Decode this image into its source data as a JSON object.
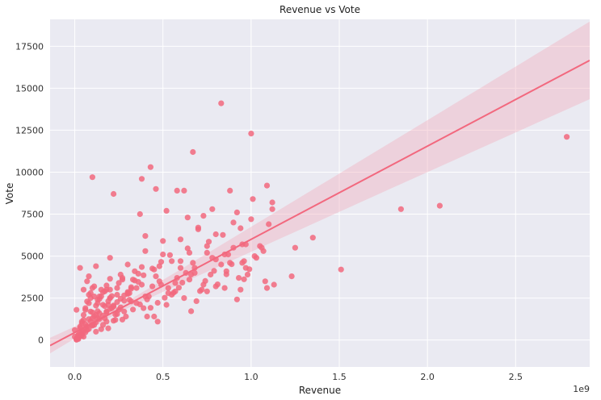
{
  "chart_data": {
    "type": "scatter",
    "title": "Revenue vs Vote",
    "xlabel": "Revenue",
    "ylabel": "Vote",
    "x_offset_label": "1e9",
    "xlim": [
      -0.14,
      2.92
    ],
    "ylim": [
      -1600,
      19100
    ],
    "xticks": [
      0.0,
      0.5,
      1.0,
      1.5,
      2.0,
      2.5
    ],
    "xtick_labels": [
      "0.0",
      "0.5",
      "1.0",
      "1.5",
      "2.0",
      "2.5"
    ],
    "yticks": [
      0,
      2500,
      5000,
      7500,
      10000,
      12500,
      15000,
      17500
    ],
    "ytick_labels": [
      "0",
      "2500",
      "5000",
      "7500",
      "10000",
      "12500",
      "15000",
      "17500"
    ],
    "grid": true,
    "background_color": "#eaeaf2",
    "point_color": "#f2687e",
    "line_color": "#f2687e",
    "band_color": "#f2b3c2",
    "regression": {
      "intercept": 450,
      "slope": 5550
    },
    "points_x": [
      0.02,
      0.03,
      0.05,
      0.04,
      0.06,
      0.08,
      0.1,
      0.12,
      0.15,
      0.18,
      0.2,
      0.22,
      0.25,
      0.28,
      0.3,
      0.02,
      0.04,
      0.07,
      0.09,
      0.11,
      0.13,
      0.16,
      0.19,
      0.21,
      0.24,
      0.27,
      0.29,
      0.32,
      0.35,
      0.01,
      0.03,
      0.06,
      0.08,
      0.12,
      0.14,
      0.17,
      0.23,
      0.26,
      0.31,
      0.34,
      0.38,
      0.4,
      0.42,
      0.45,
      0.48,
      0.5,
      0.52,
      0.55,
      0.58,
      0.6,
      0.62,
      0.65,
      0.68,
      0.7,
      0.72,
      0.75,
      0.78,
      0.8,
      0.85,
      0.88,
      0.9,
      0.95,
      0.98,
      1.0,
      1.02,
      1.05,
      1.08,
      1.1,
      1.12,
      0.05,
      0.1,
      0.15,
      0.2,
      0.25,
      0.3,
      0.35,
      0.4,
      0.45,
      0.5,
      0.55,
      0.6,
      0.65,
      0.7,
      0.75,
      0.8,
      0.85,
      0.9,
      0.95,
      0.02,
      0.04,
      0.06,
      0.08,
      0.1,
      0.12,
      0.14,
      0.16,
      0.18,
      0.2,
      0.22,
      0.24,
      0.26,
      0.28,
      0.3,
      0.32,
      0.34,
      0.36,
      0.38,
      0.4,
      0.44,
      0.46,
      0.48,
      0.53,
      0.57,
      0.63,
      0.67,
      0.73,
      0.77,
      0.83,
      0.87,
      0.93,
      0.97,
      1.03,
      1.06,
      0.01,
      0.02,
      0.03,
      0.05,
      0.07,
      0.09,
      0.11,
      0.13,
      0.17,
      0.19,
      0.21,
      0.23,
      0.27,
      0.33,
      0.37,
      0.41,
      0.43,
      0.47,
      0.51,
      0.56,
      0.59,
      0.61,
      0.66,
      0.69,
      0.71,
      0.74,
      0.79,
      0.81,
      0.86,
      0.89,
      0.92,
      0.96,
      0.99,
      0.02,
      0.04,
      0.06,
      0.08,
      0.1,
      0.12,
      0.14,
      0.16,
      0.18,
      0.2,
      0.22,
      0.24,
      0.26,
      0.28,
      0.3,
      0.32,
      0.36,
      0.39,
      0.44,
      0.49,
      0.54,
      0.64,
      0.76,
      0.84,
      0.94,
      0.1,
      0.22,
      0.38,
      0.43,
      0.37,
      0.46,
      0.58,
      0.67,
      0.83,
      1.0,
      0.88,
      1.01,
      1.09,
      0.78,
      0.52,
      0.97,
      1.12,
      0.73,
      0.92,
      0.64,
      0.62,
      1.25,
      1.35,
      1.51,
      1.85,
      2.07,
      2.79,
      1.23,
      1.13,
      1.09,
      1.07,
      0.96,
      0.94,
      0.86,
      0.8,
      0.75,
      0.68,
      0.66,
      0.6,
      0.57,
      0.53,
      0.49,
      0.47,
      0.41,
      0.39,
      0.33,
      0.31,
      0.27,
      0.24,
      0.2,
      0.18,
      0.13,
      0.11,
      0.09,
      0.07,
      0.05,
      0.03,
      0.01,
      0.0,
      0.0,
      0.01,
      0.02,
      0.03,
      0.04,
      0.05,
      0.06,
      0.07,
      0.08,
      0.09,
      0.1,
      0.11,
      0.12,
      0.13,
      0.14,
      0.15,
      0.16,
      0.17,
      0.18,
      0.19,
      0.2
    ],
    "points_y": [
      300,
      800,
      1200,
      500,
      1800,
      2200,
      900,
      1500,
      2600,
      1100,
      3000,
      2000,
      3400,
      1700,
      2800,
      150,
      1000,
      600,
      2500,
      3200,
      1300,
      2100,
      700,
      1900,
      2700,
      3600,
      1400,
      2300,
      3100,
      50,
      400,
      950,
      3800,
      4400,
      1600,
      2900,
      1200,
      3900,
      2400,
      4100,
      3300,
      5300,
      2600,
      4200,
      3500,
      5900,
      2100,
      4700,
      3700,
      6000,
      2500,
      5200,
      4300,
      6700,
      3000,
      5600,
      4900,
      6300,
      5100,
      4600,
      7000,
      5700,
      3900,
      7200,
      5000,
      5600,
      3500,
      6900,
      7800,
      200,
      3100,
      650,
      4900,
      1800,
      4500,
      2200,
      6200,
      1400,
      5100,
      2700,
      4300,
      3600,
      6600,
      2900,
      4800,
      3100,
      5500,
      4600,
      100,
      350,
      750,
      1250,
      1650,
      2050,
      2450,
      2850,
      3250,
      3650,
      1150,
      1550,
      1950,
      2350,
      2750,
      3150,
      3550,
      3950,
      4350,
      2600,
      3200,
      3800,
      4400,
      2800,
      3400,
      4000,
      4600,
      3300,
      3900,
      4500,
      5100,
      3700,
      4300,
      4900,
      5500,
      20,
      120,
      220,
      520,
      820,
      1120,
      1420,
      1720,
      2020,
      2320,
      2620,
      1520,
      1220,
      1820,
      2120,
      2420,
      1920,
      2220,
      2520,
      2820,
      3120,
      3420,
      1720,
      2320,
      2920,
      3520,
      4120,
      3320,
      3920,
      4520,
      2420,
      3620,
      4220,
      60,
      260,
      460,
      660,
      860,
      1060,
      1260,
      1460,
      1660,
      1860,
      2060,
      2260,
      2460,
      2660,
      2860,
      3060,
      3460,
      3860,
      4260,
      4660,
      5060,
      5460,
      5860,
      6260,
      6660,
      9700,
      8700,
      9600,
      10300,
      7500,
      9000,
      8900,
      11200,
      14100,
      12300,
      8900,
      8400,
      9200,
      7800,
      7700,
      5700,
      8200,
      7400,
      7600,
      7300,
      8900,
      5500,
      6100,
      4200,
      7800,
      8000,
      12100,
      3800,
      3300,
      3100,
      5300,
      4700,
      3000,
      4100,
      3200,
      5200,
      4000,
      3900,
      4700,
      2900,
      3100,
      3300,
      1100,
      1400,
      1900,
      3600,
      2800,
      3700,
      3100,
      2500,
      3000,
      2400,
      2600,
      2800,
      3500,
      3000,
      4300,
      1800,
      600,
      200,
      100,
      300,
      700,
      1100,
      1500,
      1900,
      2300,
      2700,
      1700,
      1300,
      900,
      500,
      2200,
      2600,
      3000,
      900,
      1300,
      1700,
      2100,
      2500
    ]
  }
}
